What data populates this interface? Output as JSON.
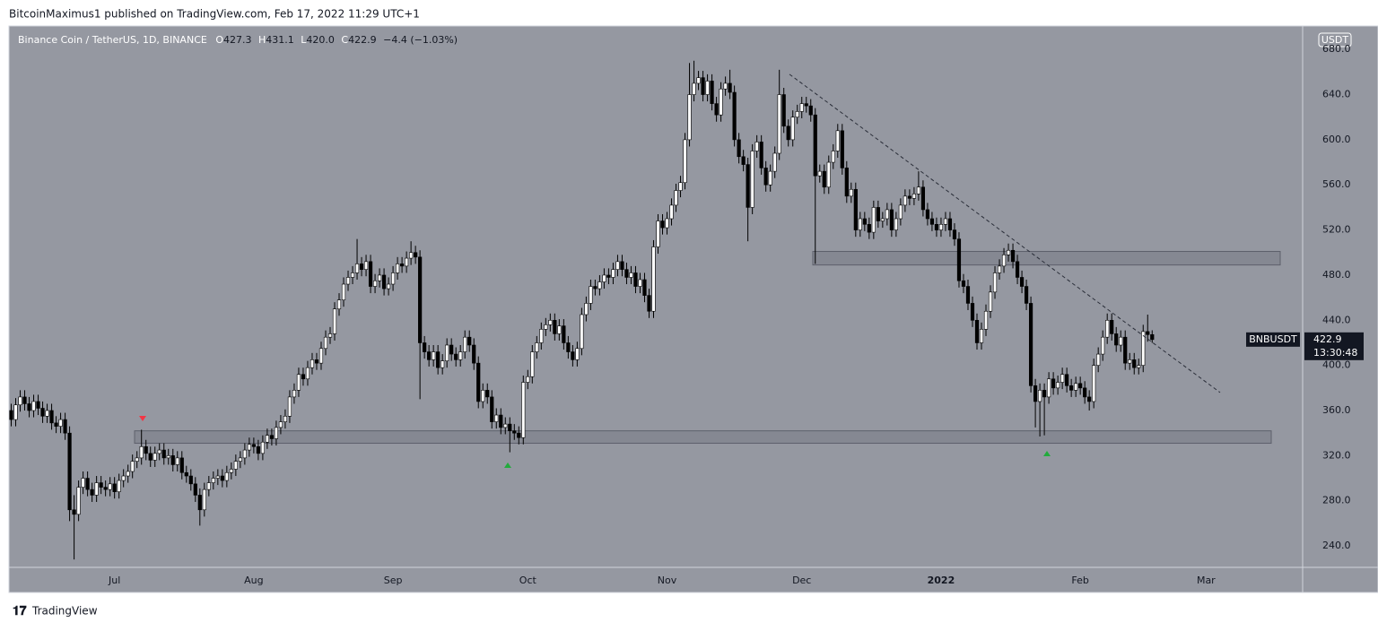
{
  "attribution": "BitcoinMaximus1 published on TradingView.com, Feb 17, 2022 11:29 UTC+1",
  "footer": "TradingView",
  "chart_data": {
    "type": "candlestick",
    "title": "Binance Coin / TetherUS, 1D, BINANCE",
    "legend": [
      {
        "key": "O",
        "value": "427.3"
      },
      {
        "key": "H",
        "value": "431.1"
      },
      {
        "key": "L",
        "value": "420.0"
      },
      {
        "key": "C",
        "value": "422.9"
      }
    ],
    "change": "−4.4 (−1.03%)",
    "currency": "USDT",
    "symbol_tag": "BNBUSDT",
    "last_price": 422.9,
    "countdown": "13:30:48",
    "up_color": "#ffffff",
    "down_color": "#000000",
    "ylim": [
      221,
      700
    ],
    "yticks": [
      {
        "value": 240,
        "label": "240.0"
      },
      {
        "value": 280,
        "label": "280.0"
      },
      {
        "value": 320,
        "label": "320.0"
      },
      {
        "value": 360,
        "label": "360.0"
      },
      {
        "value": 400,
        "label": "400.0"
      },
      {
        "value": 440,
        "label": "440.0"
      },
      {
        "value": 480,
        "label": "480.0"
      },
      {
        "value": 520,
        "label": "520.0"
      },
      {
        "value": 560,
        "label": "560.0"
      },
      {
        "value": 600,
        "label": "600.0"
      },
      {
        "value": 640,
        "label": "640.0"
      },
      {
        "value": 680,
        "label": "680.0"
      }
    ],
    "zones": [
      {
        "low": 331,
        "high": 342
      },
      {
        "low": 489,
        "high": 501
      }
    ],
    "trendline": [
      658,
      376
    ],
    "categories": [
      null,
      null,
      null,
      null,
      null,
      null,
      null,
      null,
      null,
      null,
      null,
      null,
      null,
      null,
      null,
      null,
      null,
      null,
      null,
      null,
      null,
      null,
      null,
      "Jul",
      null,
      null,
      null,
      null,
      null,
      null,
      null,
      null,
      null,
      null,
      null,
      null,
      null,
      null,
      null,
      null,
      null,
      null,
      null,
      null,
      null,
      null,
      null,
      null,
      null,
      null,
      null,
      null,
      null,
      null,
      "Aug",
      null,
      null,
      null,
      null,
      null,
      null,
      null,
      null,
      null,
      null,
      null,
      null,
      null,
      null,
      null,
      null,
      null,
      null,
      null,
      null,
      null,
      null,
      null,
      null,
      null,
      null,
      null,
      null,
      null,
      null,
      "Sep",
      null,
      null,
      null,
      null,
      null,
      null,
      null,
      null,
      null,
      null,
      null,
      null,
      null,
      null,
      null,
      null,
      null,
      null,
      null,
      null,
      null,
      null,
      null,
      null,
      null,
      null,
      null,
      null,
      null,
      "Oct",
      null,
      null,
      null,
      null,
      null,
      null,
      null,
      null,
      null,
      null,
      null,
      null,
      null,
      null,
      null,
      null,
      null,
      null,
      null,
      null,
      null,
      null,
      null,
      null,
      null,
      null,
      null,
      null,
      null,
      null,
      "Nov",
      null,
      null,
      null,
      null,
      null,
      null,
      null,
      null,
      null,
      null,
      null,
      null,
      null,
      null,
      null,
      null,
      null,
      null,
      null,
      null,
      null,
      null,
      null,
      null,
      null,
      null,
      null,
      null,
      null,
      "Dec",
      null,
      null,
      null,
      null,
      null,
      null,
      null,
      null,
      null,
      null,
      null,
      null,
      null,
      null,
      null,
      null,
      null,
      null,
      null,
      null,
      null,
      null,
      null,
      null,
      null,
      null,
      null,
      null,
      null,
      null,
      "2022",
      null,
      null,
      null,
      null,
      null,
      null,
      null,
      null,
      null,
      null,
      null,
      null,
      null,
      null,
      null,
      null,
      null,
      null,
      null,
      null,
      null,
      null,
      null,
      null,
      null,
      null,
      null,
      null,
      null,
      null,
      "Feb",
      null,
      null,
      null,
      null,
      null,
      null,
      null,
      null,
      null,
      null,
      null,
      null,
      null,
      null,
      null,
      null,
      null,
      null,
      null,
      null,
      null,
      null,
      null,
      null,
      null,
      null,
      null,
      "Mar",
      null,
      null,
      null,
      null,
      null,
      null,
      null,
      null,
      null,
      null,
      null,
      null,
      null,
      null,
      null,
      null,
      null,
      null,
      null,
      null,
      null
    ],
    "open": [
      360,
      352,
      365,
      372,
      366,
      360,
      368,
      362,
      355,
      360,
      349,
      346,
      352,
      340,
      272,
      268,
      292,
      300,
      290,
      285,
      296,
      292,
      290,
      295,
      288,
      298,
      302,
      306,
      315,
      318,
      328,
      322,
      316,
      322,
      325,
      318,
      320,
      312,
      318,
      305,
      302,
      295,
      285,
      272,
      290,
      296,
      300,
      302,
      298,
      305,
      308,
      315,
      318,
      325,
      330,
      328,
      322,
      332,
      338,
      335,
      345,
      350,
      355,
      372,
      378,
      392,
      388,
      398,
      405,
      402,
      415,
      425,
      428,
      450,
      458,
      472,
      478,
      482,
      490,
      485,
      492,
      470,
      475,
      480,
      468,
      472,
      482,
      490,
      488,
      495,
      500,
      496,
      420,
      412,
      405,
      412,
      398,
      404,
      418,
      410,
      405,
      412,
      425,
      418,
      402,
      368,
      378,
      372,
      350,
      356,
      345,
      348,
      342,
      340,
      336,
      385,
      390,
      412,
      420,
      432,
      436,
      440,
      428,
      435,
      420,
      412,
      405,
      415,
      445,
      455,
      470,
      468,
      474,
      480,
      478,
      485,
      492,
      485,
      478,
      482,
      470,
      476,
      462,
      448,
      505,
      528,
      522,
      530,
      542,
      555,
      562,
      600,
      640,
      650,
      655,
      640,
      652,
      632,
      622,
      645,
      650,
      642,
      600,
      585,
      578,
      540,
      590,
      598,
      575,
      560,
      572,
      588,
      640,
      612,
      600,
      620,
      625,
      632,
      630,
      622,
      568,
      572,
      558,
      580,
      590,
      608,
      575,
      550,
      556,
      520,
      530,
      525,
      518,
      540,
      528,
      530,
      538,
      520,
      530,
      542,
      550,
      548,
      552,
      558,
      538,
      530,
      525,
      520,
      525,
      530,
      520,
      512,
      475,
      470,
      455,
      440,
      420,
      432,
      448,
      465,
      482,
      488,
      498,
      502,
      492,
      478,
      470,
      455,
      382,
      368,
      378,
      372,
      388,
      380,
      385,
      392,
      382,
      378,
      384,
      380,
      372,
      368,
      400,
      410,
      425,
      440,
      428,
      418,
      425,
      402,
      405,
      398,
      400,
      430,
      427.3,
      null,
      null,
      null,
      null,
      null,
      null,
      null,
      null,
      null,
      null,
      null,
      null,
      null,
      null,
      null,
      null,
      null,
      null,
      null,
      null,
      null,
      null,
      null,
      null,
      null,
      null,
      null,
      null,
      null,
      null,
      null,
      null,
      null
    ],
    "high": [
      366,
      371,
      378,
      378,
      372,
      374,
      374,
      368,
      366,
      366,
      355,
      358,
      358,
      346,
      285,
      298,
      306,
      306,
      296,
      302,
      302,
      298,
      301,
      301,
      304,
      308,
      312,
      321,
      324,
      343,
      334,
      328,
      328,
      331,
      331,
      326,
      326,
      324,
      324,
      311,
      308,
      301,
      291,
      296,
      302,
      306,
      308,
      308,
      311,
      314,
      321,
      324,
      331,
      336,
      336,
      334,
      338,
      344,
      344,
      351,
      356,
      361,
      378,
      384,
      398,
      398,
      404,
      411,
      411,
      421,
      431,
      434,
      456,
      464,
      478,
      484,
      488,
      512,
      496,
      498,
      498,
      481,
      486,
      486,
      478,
      488,
      496,
      496,
      501,
      510,
      506,
      502,
      426,
      418,
      418,
      418,
      410,
      424,
      424,
      416,
      418,
      431,
      431,
      424,
      408,
      384,
      384,
      378,
      362,
      362,
      354,
      354,
      348,
      346,
      391,
      396,
      418,
      426,
      438,
      442,
      446,
      446,
      441,
      441,
      426,
      418,
      421,
      451,
      461,
      476,
      476,
      480,
      486,
      486,
      491,
      498,
      498,
      491,
      488,
      488,
      482,
      482,
      468,
      511,
      534,
      534,
      536,
      548,
      561,
      568,
      606,
      668,
      670,
      661,
      661,
      658,
      658,
      638,
      651,
      656,
      662,
      648,
      606,
      591,
      584,
      596,
      604,
      604,
      581,
      578,
      594,
      662,
      646,
      618,
      626,
      631,
      638,
      638,
      636,
      628,
      578,
      578,
      586,
      596,
      614,
      614,
      581,
      562,
      562,
      536,
      536,
      531,
      546,
      546,
      536,
      544,
      544,
      536,
      548,
      556,
      556,
      558,
      572,
      564,
      544,
      536,
      531,
      531,
      536,
      536,
      526,
      518,
      481,
      476,
      461,
      446,
      438,
      454,
      471,
      488,
      494,
      504,
      508,
      508,
      498,
      484,
      476,
      461,
      388,
      384,
      384,
      394,
      394,
      391,
      398,
      398,
      388,
      390,
      390,
      386,
      378,
      406,
      416,
      431,
      446,
      446,
      434,
      431,
      431,
      411,
      411,
      406,
      436,
      445,
      431.1,
      null,
      null,
      null,
      null,
      null,
      null,
      null,
      null,
      null,
      null,
      null,
      null,
      null,
      null,
      null,
      null,
      null,
      null,
      null,
      null,
      null,
      null,
      null,
      null,
      null,
      null,
      null,
      null,
      null,
      null,
      null,
      null,
      null
    ],
    "low": [
      346,
      346,
      359,
      360,
      354,
      354,
      356,
      349,
      349,
      343,
      340,
      340,
      334,
      262,
      228,
      262,
      286,
      284,
      279,
      279,
      286,
      284,
      284,
      282,
      282,
      292,
      296,
      300,
      309,
      312,
      316,
      310,
      310,
      316,
      312,
      312,
      306,
      306,
      299,
      296,
      289,
      279,
      258,
      266,
      284,
      290,
      294,
      292,
      292,
      299,
      302,
      309,
      312,
      319,
      322,
      316,
      316,
      326,
      329,
      329,
      339,
      344,
      349,
      366,
      372,
      382,
      382,
      392,
      396,
      396,
      409,
      419,
      422,
      444,
      452,
      466,
      472,
      476,
      479,
      479,
      464,
      464,
      469,
      462,
      462,
      466,
      476,
      482,
      482,
      489,
      490,
      370,
      406,
      399,
      399,
      392,
      392,
      398,
      404,
      399,
      399,
      406,
      412,
      396,
      362,
      362,
      366,
      344,
      344,
      339,
      339,
      323,
      334,
      330,
      330,
      379,
      384,
      406,
      414,
      426,
      430,
      422,
      422,
      414,
      406,
      399,
      399,
      409,
      439,
      449,
      462,
      462,
      468,
      472,
      472,
      479,
      479,
      472,
      472,
      464,
      464,
      456,
      442,
      442,
      499,
      516,
      516,
      524,
      536,
      549,
      556,
      594,
      634,
      644,
      634,
      634,
      626,
      616,
      616,
      639,
      636,
      594,
      579,
      572,
      510,
      534,
      584,
      569,
      554,
      554,
      566,
      582,
      606,
      594,
      594,
      614,
      619,
      624,
      616,
      490,
      562,
      552,
      552,
      574,
      584,
      569,
      544,
      544,
      514,
      514,
      519,
      512,
      512,
      522,
      522,
      524,
      514,
      514,
      524,
      536,
      542,
      542,
      546,
      532,
      524,
      519,
      514,
      514,
      519,
      514,
      506,
      469,
      464,
      449,
      434,
      414,
      414,
      426,
      442,
      459,
      476,
      482,
      492,
      486,
      472,
      464,
      449,
      376,
      345,
      337,
      338,
      366,
      374,
      374,
      379,
      376,
      372,
      372,
      374,
      366,
      360,
      362,
      394,
      404,
      419,
      422,
      412,
      412,
      396,
      396,
      392,
      392,
      394,
      421,
      420,
      null,
      null,
      null,
      null,
      null,
      null,
      null,
      null,
      null,
      null,
      null,
      null,
      null,
      null,
      null,
      null,
      null,
      null,
      null,
      null,
      null,
      null,
      null,
      null,
      null,
      null,
      null,
      null,
      null,
      null,
      null,
      null,
      null
    ],
    "close": [
      352,
      365,
      372,
      366,
      360,
      368,
      362,
      355,
      360,
      349,
      346,
      352,
      340,
      272,
      268,
      292,
      300,
      290,
      285,
      296,
      292,
      290,
      295,
      288,
      298,
      302,
      306,
      315,
      318,
      328,
      322,
      316,
      322,
      325,
      318,
      320,
      312,
      318,
      305,
      302,
      295,
      285,
      272,
      290,
      296,
      300,
      302,
      298,
      305,
      308,
      315,
      318,
      325,
      330,
      328,
      322,
      332,
      338,
      335,
      345,
      350,
      355,
      372,
      378,
      392,
      388,
      398,
      405,
      402,
      415,
      425,
      428,
      450,
      458,
      472,
      478,
      482,
      490,
      485,
      492,
      470,
      475,
      480,
      468,
      472,
      482,
      490,
      488,
      495,
      500,
      496,
      420,
      412,
      405,
      412,
      398,
      404,
      418,
      410,
      405,
      412,
      425,
      418,
      402,
      368,
      378,
      372,
      350,
      356,
      345,
      348,
      342,
      340,
      336,
      385,
      390,
      412,
      420,
      432,
      436,
      440,
      428,
      435,
      420,
      412,
      405,
      415,
      445,
      455,
      470,
      468,
      474,
      480,
      478,
      485,
      492,
      485,
      478,
      482,
      470,
      476,
      462,
      448,
      505,
      528,
      522,
      530,
      542,
      555,
      562,
      600,
      640,
      650,
      655,
      640,
      652,
      632,
      622,
      645,
      650,
      642,
      600,
      585,
      578,
      540,
      590,
      598,
      575,
      560,
      572,
      588,
      640,
      612,
      600,
      620,
      625,
      632,
      630,
      622,
      568,
      572,
      558,
      580,
      590,
      608,
      575,
      550,
      556,
      520,
      530,
      525,
      518,
      540,
      528,
      530,
      538,
      520,
      530,
      542,
      550,
      548,
      552,
      558,
      538,
      530,
      525,
      520,
      525,
      530,
      520,
      512,
      475,
      470,
      455,
      440,
      420,
      432,
      448,
      465,
      482,
      488,
      498,
      502,
      492,
      478,
      470,
      455,
      382,
      368,
      378,
      372,
      388,
      380,
      385,
      392,
      382,
      378,
      384,
      380,
      372,
      368,
      400,
      410,
      425,
      440,
      428,
      418,
      425,
      402,
      405,
      398,
      400,
      430,
      427.3,
      422.9,
      null,
      null,
      null,
      null,
      null,
      null,
      null,
      null,
      null,
      null,
      null,
      null,
      null,
      null,
      null,
      null,
      null,
      null,
      null,
      null,
      null,
      null,
      null,
      null,
      null,
      null,
      null,
      null,
      null,
      null,
      null,
      null,
      null
    ]
  }
}
